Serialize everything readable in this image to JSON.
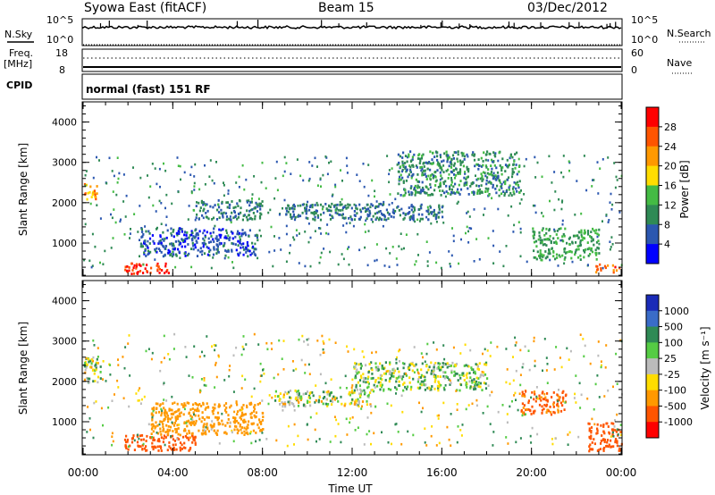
{
  "header": {
    "title": "Syowa East (fitACF)",
    "beam": "Beam 15",
    "date": "03/Dec/2012"
  },
  "strip_panels": {
    "nsky": {
      "label": "N.Sky",
      "ticks": [
        "10^5",
        "10^0"
      ],
      "right_label": "N.Search",
      "right_ticks": [
        "10^5",
        "10^0"
      ]
    },
    "freq": {
      "label_line1": "Freq.",
      "label_line2": "[MHz]",
      "ticks": [
        "18",
        "8"
      ],
      "right_label": "Nave",
      "right_ticks": [
        "60",
        "0"
      ]
    },
    "cpid": {
      "label": "CPID",
      "value": "normal (fast) 151 RF"
    }
  },
  "colors": {
    "power_scale": [
      "#0000ff",
      "#2b57b0",
      "#2f8a55",
      "#44bb44",
      "#ffdd00",
      "#ff9900",
      "#ff5500",
      "#ff0000"
    ],
    "velocity_scale": [
      "#1a2bb8",
      "#3a6cc8",
      "#2f8a55",
      "#55cc44",
      "#bbbbbb",
      "#ffdd00",
      "#ff9900",
      "#ff5500",
      "#ff0000"
    ]
  },
  "chart_data": [
    {
      "type": "heatmap",
      "name": "power",
      "ylabel": "Slant Range [km]",
      "ylim": [
        180,
        4500
      ],
      "yticks": [
        1000,
        2000,
        3000,
        4000
      ],
      "xlim": [
        0,
        24
      ],
      "colorbar": {
        "label": "Power [dB]",
        "ticks": [
          "4",
          "8",
          "12",
          "16",
          "20",
          "24",
          "28"
        ],
        "range": [
          0,
          32
        ]
      },
      "features": [
        {
          "t0": 0.0,
          "t1": 0.6,
          "r0": 2000,
          "r1": 2500,
          "value": 22
        },
        {
          "t0": 1.8,
          "t1": 3.8,
          "r0": 260,
          "r1": 520,
          "value": 28
        },
        {
          "t0": 2.5,
          "t1": 7.8,
          "r0": 700,
          "r1": 1400,
          "value": 6
        },
        {
          "t0": 5.0,
          "t1": 8.0,
          "r0": 1600,
          "r1": 2100,
          "value": 8
        },
        {
          "t0": 9.0,
          "t1": 16.0,
          "r0": 1600,
          "r1": 2000,
          "value": 8
        },
        {
          "t0": 14.0,
          "t1": 19.5,
          "r0": 2200,
          "r1": 3300,
          "value": 10
        },
        {
          "t0": 20.0,
          "t1": 23.0,
          "r0": 600,
          "r1": 1400,
          "value": 12
        },
        {
          "t0": 22.8,
          "t1": 24.0,
          "r0": 300,
          "r1": 500,
          "value": 26
        }
      ]
    },
    {
      "type": "heatmap",
      "name": "velocity",
      "ylabel": "Slant Range [km]",
      "xlabel": "Time UT",
      "ylim": [
        180,
        4500
      ],
      "yticks": [
        1000,
        2000,
        3000,
        4000
      ],
      "xlim": [
        0,
        24
      ],
      "xticks": [
        "00:00",
        "04:00",
        "08:00",
        "12:00",
        "16:00",
        "20:00",
        "00:00"
      ],
      "colorbar": {
        "label": "Velocity [m s⁻¹]",
        "ticks": [
          "1000",
          "500",
          "100",
          "25",
          "-25",
          "-100",
          "-500",
          "-1000"
        ]
      },
      "features": [
        {
          "t0": 0.0,
          "t1": 0.8,
          "r0": 2000,
          "r1": 2600,
          "value": 25
        },
        {
          "t0": 1.8,
          "t1": 5.0,
          "r0": 300,
          "r1": 700,
          "value": -800
        },
        {
          "t0": 3.0,
          "t1": 8.0,
          "r0": 700,
          "r1": 1500,
          "value": -300
        },
        {
          "t0": 8.5,
          "t1": 13.0,
          "r0": 1400,
          "r1": 1800,
          "value": 0
        },
        {
          "t0": 12.0,
          "t1": 18.0,
          "r0": 1800,
          "r1": 2500,
          "value": 50
        },
        {
          "t0": 19.5,
          "t1": 21.5,
          "r0": 1200,
          "r1": 1800,
          "value": -600
        },
        {
          "t0": 22.5,
          "t1": 24.0,
          "r0": 300,
          "r1": 1000,
          "value": -800
        }
      ]
    }
  ]
}
